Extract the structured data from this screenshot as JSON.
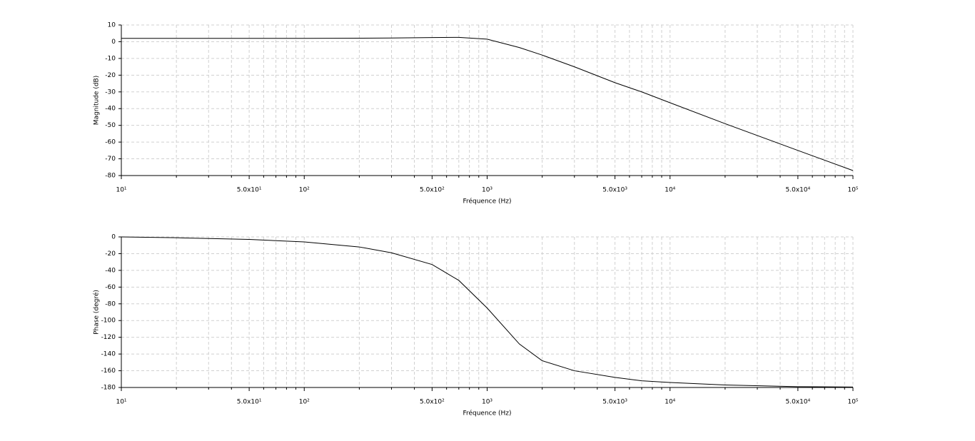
{
  "chart_data": [
    {
      "type": "line",
      "log_x": true,
      "grid": true,
      "color": "#000000",
      "xlabel": "Fréquence (Hz)",
      "ylabel": "Magnitude (dB)",
      "x": [
        10,
        20,
        50,
        100,
        200,
        300,
        500,
        700,
        1000,
        1500,
        2000,
        3000,
        5000,
        7000,
        10000,
        20000,
        50000,
        100000
      ],
      "values": [
        2,
        2,
        2,
        2,
        2.1,
        2.2,
        2.5,
        2.6,
        1.5,
        -3.5,
        -8,
        -15,
        -24.5,
        -30,
        -36.5,
        -49,
        -65,
        -77
      ],
      "xlim": [
        10,
        100000
      ],
      "xticks": [
        {
          "value": 10,
          "label": "10¹"
        },
        {
          "value": 50,
          "label": "5.0x10¹"
        },
        {
          "value": 100,
          "label": "10²"
        },
        {
          "value": 500,
          "label": "5.0x10²"
        },
        {
          "value": 1000,
          "label": "10³"
        },
        {
          "value": 5000,
          "label": "5.0x10³"
        },
        {
          "value": 10000,
          "label": "10⁴"
        },
        {
          "value": 50000,
          "label": "5.0x10⁴"
        },
        {
          "value": 100000,
          "label": "10⁵"
        }
      ],
      "xminorticks": [
        20,
        30,
        40,
        60,
        70,
        80,
        90,
        200,
        300,
        400,
        600,
        700,
        800,
        900,
        2000,
        3000,
        4000,
        6000,
        7000,
        8000,
        9000,
        20000,
        30000,
        40000,
        60000,
        70000,
        80000,
        90000
      ],
      "ylim": [
        -80,
        10
      ],
      "yticks": [
        -80,
        -70,
        -60,
        -50,
        -40,
        -30,
        -20,
        -10,
        0,
        10
      ]
    },
    {
      "type": "line",
      "log_x": true,
      "grid": true,
      "color": "#000000",
      "xlabel": "Fréquence (Hz)",
      "ylabel": "Phase (degré)",
      "x": [
        10,
        20,
        50,
        100,
        200,
        300,
        500,
        700,
        1000,
        1500,
        2000,
        3000,
        5000,
        7000,
        10000,
        20000,
        50000,
        100000
      ],
      "values": [
        0,
        -1,
        -3,
        -6,
        -12,
        -19,
        -33,
        -52,
        -85,
        -128,
        -148,
        -160,
        -168,
        -172,
        -174,
        -177,
        -179,
        -179.5
      ],
      "xlim": [
        10,
        100000
      ],
      "xticks": [
        {
          "value": 10,
          "label": "10¹"
        },
        {
          "value": 50,
          "label": "5.0x10¹"
        },
        {
          "value": 100,
          "label": "10²"
        },
        {
          "value": 500,
          "label": "5.0x10²"
        },
        {
          "value": 1000,
          "label": "10³"
        },
        {
          "value": 5000,
          "label": "5.0x10³"
        },
        {
          "value": 10000,
          "label": "10⁴"
        },
        {
          "value": 50000,
          "label": "5.0x10⁴"
        },
        {
          "value": 100000,
          "label": "10⁵"
        }
      ],
      "xminorticks": [
        20,
        30,
        40,
        60,
        70,
        80,
        90,
        200,
        300,
        400,
        600,
        700,
        800,
        900,
        2000,
        3000,
        4000,
        6000,
        7000,
        8000,
        9000,
        20000,
        30000,
        40000,
        60000,
        70000,
        80000,
        90000
      ],
      "ylim": [
        -180,
        0
      ],
      "yticks": [
        -180,
        -160,
        -140,
        -120,
        -100,
        -80,
        -60,
        -40,
        -20,
        0
      ]
    }
  ]
}
